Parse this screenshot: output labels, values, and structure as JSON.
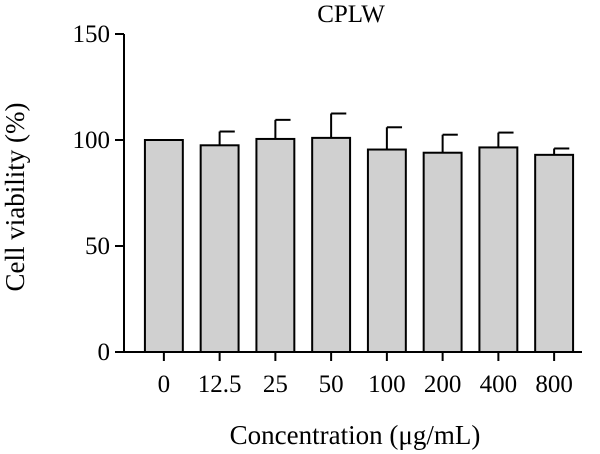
{
  "chart_data": {
    "type": "bar",
    "title": "CPLW",
    "xlabel": "Concentration (μg/mL)",
    "ylabel": "Cell viability (%)",
    "categories": [
      "0",
      "12.5",
      "25",
      "50",
      "100",
      "200",
      "400",
      "800"
    ],
    "values": [
      100,
      97.5,
      100.5,
      101,
      95.5,
      94,
      96.5,
      93
    ],
    "errors": [
      0,
      6.5,
      9,
      11.5,
      10.5,
      8.5,
      7,
      3
    ],
    "ylim": [
      0,
      150
    ],
    "yticks": [
      "0",
      "50",
      "100",
      "150"
    ],
    "grid": false,
    "bar_color": "#d0d0d0",
    "edge_color": "#000000"
  }
}
